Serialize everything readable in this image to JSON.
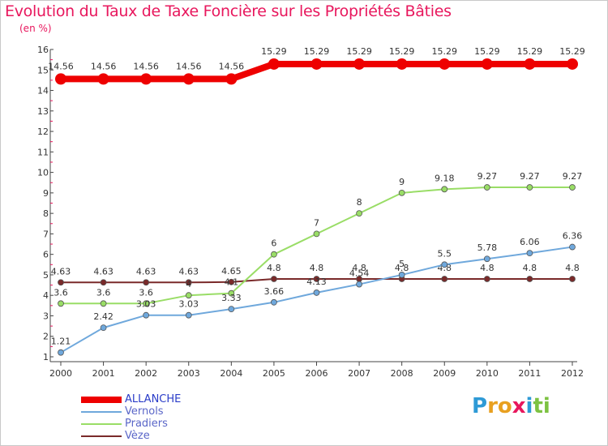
{
  "title": "Evolution du Taux de Taxe Foncière sur les Propriétés Bâties",
  "subtitle": "(en %)",
  "logo": {
    "letters": [
      "P",
      "r",
      "o",
      "x",
      "i",
      "t",
      "i"
    ],
    "colors": [
      "#2e9ad6",
      "#e8a020",
      "#e8a020",
      "#e8175d",
      "#2e9ad6",
      "#7dc242",
      "#7dc242"
    ]
  },
  "chart_data": {
    "type": "line",
    "title": "Evolution du Taux de Taxe Foncière sur les Propriétés Bâties",
    "ylabel": "(en %)",
    "xlabel": "",
    "x": [
      "2000",
      "2001",
      "2002",
      "2003",
      "2004",
      "2005",
      "2006",
      "2007",
      "2008",
      "2009",
      "2010",
      "2011",
      "2012"
    ],
    "ylim": [
      1,
      16
    ],
    "yticks": [
      "1",
      "2",
      "3",
      "4",
      "5",
      "6",
      "7",
      "8",
      "9",
      "10",
      "11",
      "12",
      "13",
      "14",
      "15",
      "16"
    ],
    "series": [
      {
        "name": "Vèze",
        "color": "#7a2a2a",
        "text_color": "#7a2a2a",
        "values": [
          4.63,
          4.63,
          4.63,
          4.63,
          4.65,
          4.8,
          4.8,
          4.8,
          4.8,
          4.8,
          4.8,
          4.8,
          4.8
        ],
        "labels": [
          "4.63",
          "4.63",
          "4.63",
          "4.63",
          "4.65",
          "4.8",
          "4.8",
          "4.8",
          "4.8",
          "4.8",
          "4.8",
          "4.8",
          "4.8"
        ]
      },
      {
        "name": "Pradiers",
        "color": "#99dd66",
        "text_color": "#3e9c1f",
        "values": [
          3.6,
          3.6,
          3.6,
          4,
          4.1,
          6,
          7,
          8,
          9,
          9.18,
          9.27,
          9.27,
          9.27
        ],
        "labels": [
          "3.6",
          "3.6",
          "3.6",
          "4",
          "4.1",
          "6",
          "7",
          "8",
          "9",
          "9.18",
          "9.27",
          "9.27",
          "9.27"
        ]
      },
      {
        "name": "Vernols",
        "color": "#6fa8dc",
        "text_color": "#2c5f9a",
        "values": [
          1.21,
          2.42,
          3.03,
          3.03,
          3.33,
          3.66,
          4.13,
          4.54,
          5,
          5.5,
          5.78,
          6.06,
          6.36
        ],
        "labels": [
          "1.21",
          "2.42",
          "3.03",
          "3.03",
          "3.33",
          "3.66",
          "4.13",
          "4.54",
          "5",
          "5.5",
          "5.78",
          "6.06",
          "6.36"
        ]
      },
      {
        "name": "ALLANCHE",
        "color": "#ee0000",
        "text_color": "#ee0000",
        "values": [
          14.56,
          14.56,
          14.56,
          14.56,
          14.56,
          15.29,
          15.29,
          15.29,
          15.29,
          15.29,
          15.29,
          15.29,
          15.29
        ],
        "labels": [
          "14.56",
          "14.56",
          "14.56",
          "14.56",
          "14.56",
          "15.29",
          "15.29",
          "15.29",
          "15.29",
          "15.29",
          "15.29",
          "15.29",
          "15.29"
        ]
      }
    ],
    "legend": [
      {
        "name": "ALLANCHE",
        "color": "#ee0000",
        "thick": true
      },
      {
        "name": "Vernols",
        "color": "#6fa8dc",
        "thick": false
      },
      {
        "name": "Pradiers",
        "color": "#99dd66",
        "thick": false
      },
      {
        "name": "Vèze",
        "color": "#7a2a2a",
        "thick": false
      }
    ],
    "legend_position": "bottom-left"
  }
}
